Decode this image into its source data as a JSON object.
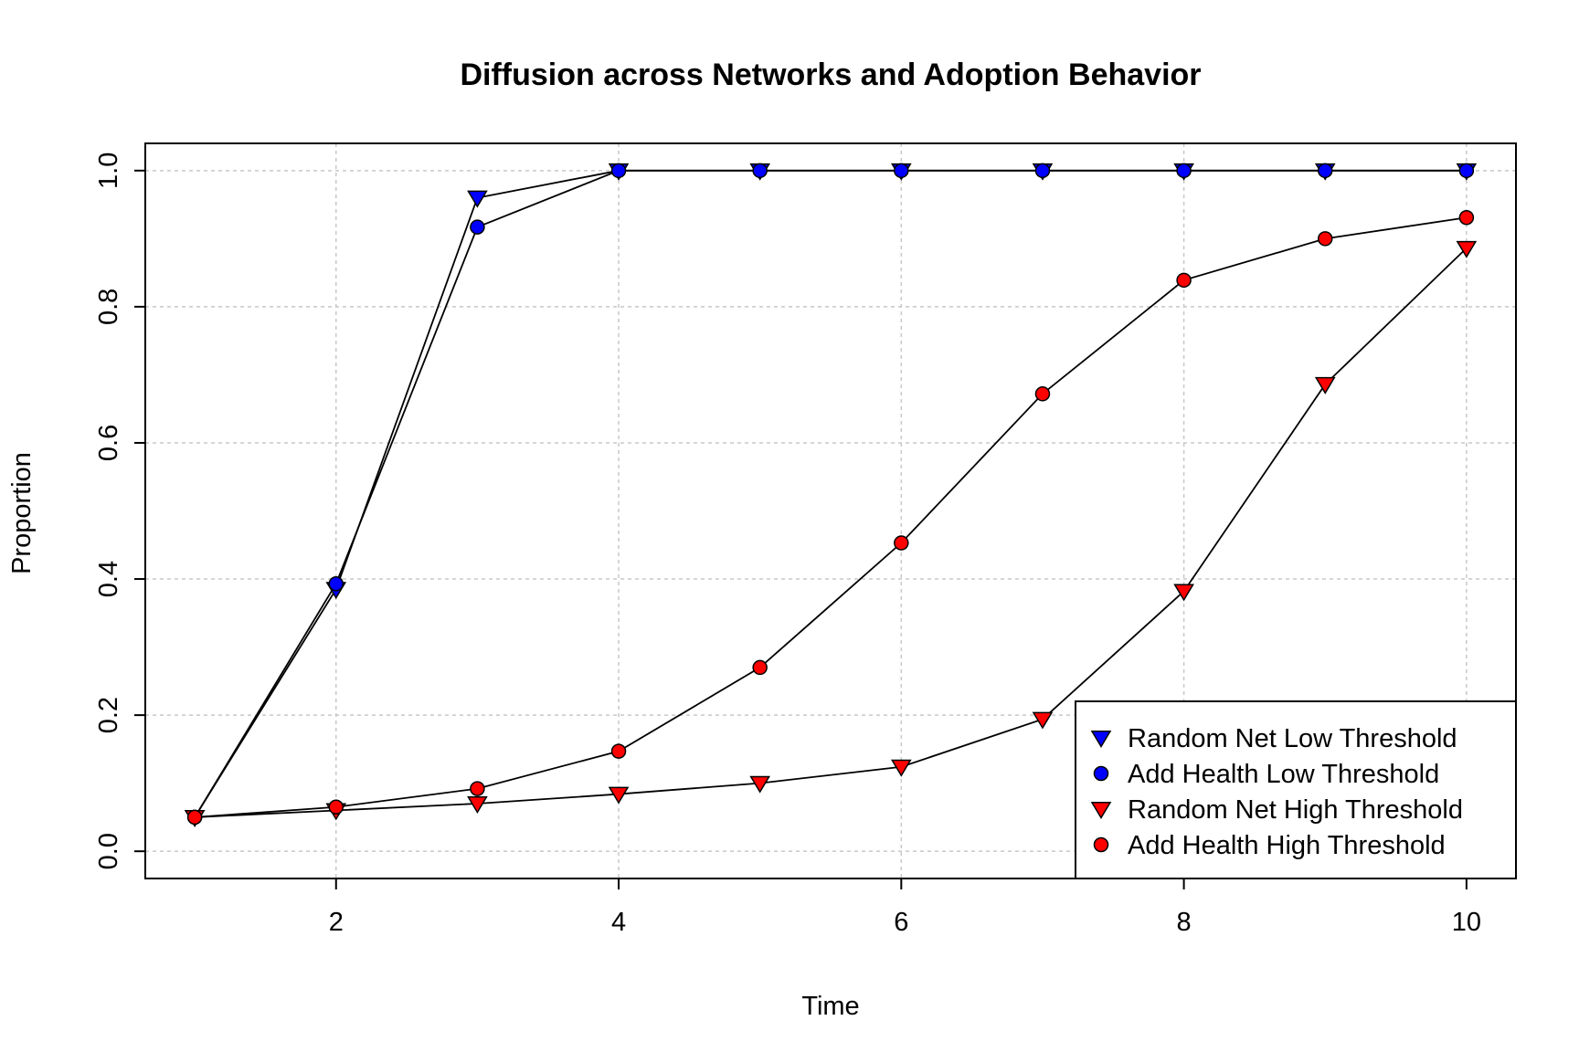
{
  "chart_data": {
    "type": "line",
    "title": "Diffusion across Networks and Adoption Behavior",
    "xlabel": "Time",
    "ylabel": "Proportion",
    "xlim": [
      0.65,
      10.35
    ],
    "ylim": [
      -0.04,
      1.04
    ],
    "x_ticks": [
      2,
      4,
      6,
      8,
      10
    ],
    "x_tick_labels": [
      "2",
      "4",
      "6",
      "8",
      "10"
    ],
    "y_ticks": [
      0.0,
      0.2,
      0.4,
      0.6,
      0.8,
      1.0
    ],
    "y_tick_labels": [
      "0.0",
      "0.2",
      "0.4",
      "0.6",
      "0.8",
      "1.0"
    ],
    "grid": true,
    "legend_position": "bottom-right",
    "x": [
      1,
      2,
      3,
      4,
      5,
      6,
      7,
      8,
      9,
      10
    ],
    "series": [
      {
        "name": "Random Net Low Threshold",
        "marker": "triangle-down",
        "color": "#0000ff",
        "values": [
          0.05,
          0.385,
          0.96,
          1.0,
          1.0,
          1.0,
          1.0,
          1.0,
          1.0,
          1.0
        ]
      },
      {
        "name": "Add Health Low Threshold",
        "marker": "circle",
        "color": "#0000ff",
        "values": [
          0.05,
          0.393,
          0.917,
          1.0,
          1.0,
          1.0,
          1.0,
          1.0,
          1.0,
          1.0
        ]
      },
      {
        "name": "Random Net High Threshold",
        "marker": "triangle-down",
        "color": "#ff0000",
        "values": [
          0.05,
          0.06,
          0.07,
          0.084,
          0.1,
          0.124,
          0.194,
          0.382,
          0.686,
          0.886
        ]
      },
      {
        "name": "Add Health High Threshold",
        "marker": "circle",
        "color": "#ff0000",
        "values": [
          0.05,
          0.065,
          0.092,
          0.147,
          0.27,
          0.453,
          0.672,
          0.839,
          0.9,
          0.931
        ]
      }
    ]
  }
}
